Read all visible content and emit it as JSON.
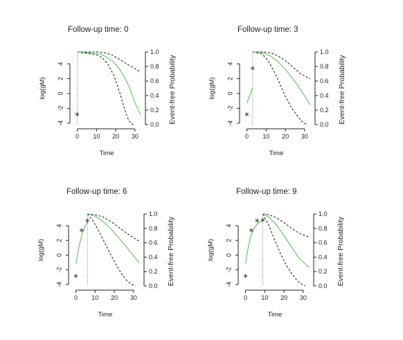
{
  "chart_data": [
    {
      "type": "line",
      "title": "Follow-up time: 0",
      "follow_up_time": 0,
      "xlabel": "Time",
      "ylabel_left": "log(gM)",
      "ylabel_right": "Event-free Probability",
      "xlim": [
        -2,
        34
      ],
      "ylim_left": [
        -4.2,
        5.6
      ],
      "ylim_right": [
        0,
        1.0
      ],
      "xticks": [
        0,
        10,
        20,
        30
      ],
      "yticks_left": [
        -4,
        -2,
        0,
        2,
        4
      ],
      "yticks_right": [
        0.0,
        0.2,
        0.4,
        0.6,
        0.8,
        1.0
      ],
      "marker_points": [
        {
          "x": 0,
          "y": -3.0
        }
      ],
      "marker_fit": [],
      "survival": {
        "x": [
          0,
          10,
          14,
          18,
          21,
          24,
          27,
          30,
          33
        ],
        "y": [
          1.0,
          0.98,
          0.95,
          0.88,
          0.8,
          0.68,
          0.52,
          0.3,
          0.13
        ]
      },
      "lower_band": {
        "x": [
          0,
          10,
          13,
          16,
          19,
          22,
          24,
          26,
          28,
          30
        ],
        "y": [
          1.0,
          0.96,
          0.92,
          0.83,
          0.68,
          0.45,
          0.27,
          0.1,
          0.01,
          0.0
        ]
      },
      "upper_band": {
        "x": [
          0,
          10,
          14,
          18,
          22,
          26,
          30,
          33
        ],
        "y": [
          1.0,
          1.0,
          0.99,
          0.96,
          0.9,
          0.83,
          0.77,
          0.72
        ]
      }
    },
    {
      "type": "line",
      "title": "Follow-up time: 3",
      "follow_up_time": 3,
      "xlabel": "Time",
      "ylabel_left": "log(gM)",
      "ylabel_right": "Event-free Probability",
      "xlim": [
        -2,
        34
      ],
      "ylim_left": [
        -4.2,
        5.6
      ],
      "ylim_right": [
        0,
        1.0
      ],
      "xticks": [
        0,
        10,
        20,
        30
      ],
      "yticks_left": [
        -4,
        -2,
        0,
        2,
        4
      ],
      "yticks_right": [
        0.0,
        0.2,
        0.4,
        0.6,
        0.8,
        1.0
      ],
      "marker_points": [
        {
          "x": 0,
          "y": -3.0
        },
        {
          "x": 3,
          "y": 3.2
        }
      ],
      "marker_fit": [
        {
          "x": 0,
          "y": -1.3
        },
        {
          "x": 3,
          "y": 0.8
        }
      ],
      "survival": {
        "x": [
          3,
          8,
          12,
          16,
          20,
          24,
          28,
          33
        ],
        "y": [
          1.0,
          0.99,
          0.95,
          0.87,
          0.76,
          0.63,
          0.48,
          0.27
        ]
      },
      "lower_band": {
        "x": [
          3,
          8,
          11,
          14,
          17,
          20,
          23,
          26,
          28,
          31
        ],
        "y": [
          1.0,
          0.97,
          0.88,
          0.74,
          0.57,
          0.39,
          0.24,
          0.13,
          0.06,
          0.0
        ]
      },
      "upper_band": {
        "x": [
          3,
          8,
          12,
          16,
          20,
          24,
          28,
          33
        ],
        "y": [
          1.0,
          1.0,
          0.99,
          0.95,
          0.88,
          0.79,
          0.7,
          0.63
        ]
      }
    },
    {
      "type": "line",
      "title": "Follow-up time: 6",
      "follow_up_time": 6,
      "xlabel": "Time",
      "ylabel_left": "log(gM)",
      "ylabel_right": "Event-free Probability",
      "xlim": [
        -2,
        34
      ],
      "ylim_left": [
        -4.2,
        5.6
      ],
      "ylim_right": [
        0,
        1.0
      ],
      "xticks": [
        0,
        10,
        20,
        30
      ],
      "yticks_left": [
        -4,
        -2,
        0,
        2,
        4
      ],
      "yticks_right": [
        0.0,
        0.2,
        0.4,
        0.6,
        0.8,
        1.0
      ],
      "marker_points": [
        {
          "x": 0,
          "y": -3.0
        },
        {
          "x": 3,
          "y": 3.2
        },
        {
          "x": 6,
          "y": 4.5
        }
      ],
      "marker_fit": [
        {
          "x": 0,
          "y": -1.2
        },
        {
          "x": 1.5,
          "y": 1.0
        },
        {
          "x": 3,
          "y": 2.6
        },
        {
          "x": 4.5,
          "y": 3.8
        },
        {
          "x": 6,
          "y": 4.5
        }
      ],
      "survival": {
        "x": [
          6,
          10,
          14,
          18,
          22,
          26,
          30,
          33
        ],
        "y": [
          1.0,
          0.97,
          0.9,
          0.8,
          0.68,
          0.55,
          0.42,
          0.32
        ]
      },
      "lower_band": {
        "x": [
          6,
          9,
          12,
          15,
          18,
          21,
          24,
          27,
          30,
          31
        ],
        "y": [
          1.0,
          0.9,
          0.76,
          0.6,
          0.44,
          0.29,
          0.16,
          0.06,
          0.01,
          0.0
        ]
      },
      "upper_band": {
        "x": [
          6,
          10,
          14,
          18,
          22,
          26,
          30,
          33
        ],
        "y": [
          1.0,
          0.99,
          0.96,
          0.9,
          0.82,
          0.74,
          0.67,
          0.62
        ]
      }
    },
    {
      "type": "line",
      "title": "Follow-up time: 9",
      "follow_up_time": 9,
      "xlabel": "Time",
      "ylabel_left": "log(gM)",
      "ylabel_right": "Event-free Probability",
      "xlim": [
        -2,
        34
      ],
      "ylim_left": [
        -4.2,
        5.6
      ],
      "ylim_right": [
        0,
        1.0
      ],
      "xticks": [
        0,
        10,
        20,
        30
      ],
      "yticks_left": [
        -4,
        -2,
        0,
        2,
        4
      ],
      "yticks_right": [
        0.0,
        0.2,
        0.4,
        0.6,
        0.8,
        1.0
      ],
      "marker_points": [
        {
          "x": 0,
          "y": -3.0
        },
        {
          "x": 3,
          "y": 3.2
        },
        {
          "x": 6,
          "y": 4.5
        },
        {
          "x": 9,
          "y": 4.6
        }
      ],
      "marker_fit": [
        {
          "x": 0,
          "y": -1.2
        },
        {
          "x": 1.5,
          "y": 1.2
        },
        {
          "x": 3,
          "y": 2.8
        },
        {
          "x": 5,
          "y": 3.9
        },
        {
          "x": 7,
          "y": 4.4
        },
        {
          "x": 9,
          "y": 4.7
        }
      ],
      "survival": {
        "x": [
          9,
          12,
          16,
          20,
          24,
          28,
          33
        ],
        "y": [
          1.0,
          0.96,
          0.85,
          0.7,
          0.54,
          0.38,
          0.26
        ]
      },
      "lower_band": {
        "x": [
          9,
          12,
          15,
          18,
          21,
          24,
          27,
          30,
          31
        ],
        "y": [
          1.0,
          0.85,
          0.65,
          0.46,
          0.3,
          0.17,
          0.07,
          0.01,
          0.0
        ]
      },
      "upper_band": {
        "x": [
          9,
          12,
          16,
          20,
          24,
          28,
          33
        ],
        "y": [
          1.0,
          0.99,
          0.95,
          0.88,
          0.8,
          0.73,
          0.68
        ]
      }
    }
  ]
}
